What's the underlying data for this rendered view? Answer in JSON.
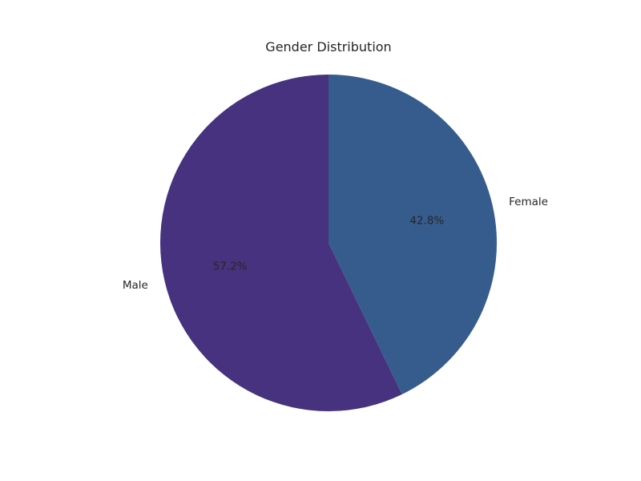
{
  "chart_data": {
    "type": "pie",
    "title": "Gender Distribution",
    "slices": [
      {
        "label": "Female",
        "value": 42.8,
        "pct_label": "42.8%",
        "color": "#365c8d"
      },
      {
        "label": "Male",
        "value": 57.2,
        "pct_label": "57.2%",
        "color": "#46327e"
      }
    ],
    "start_angle_deg": 90,
    "direction": "clockwise"
  }
}
